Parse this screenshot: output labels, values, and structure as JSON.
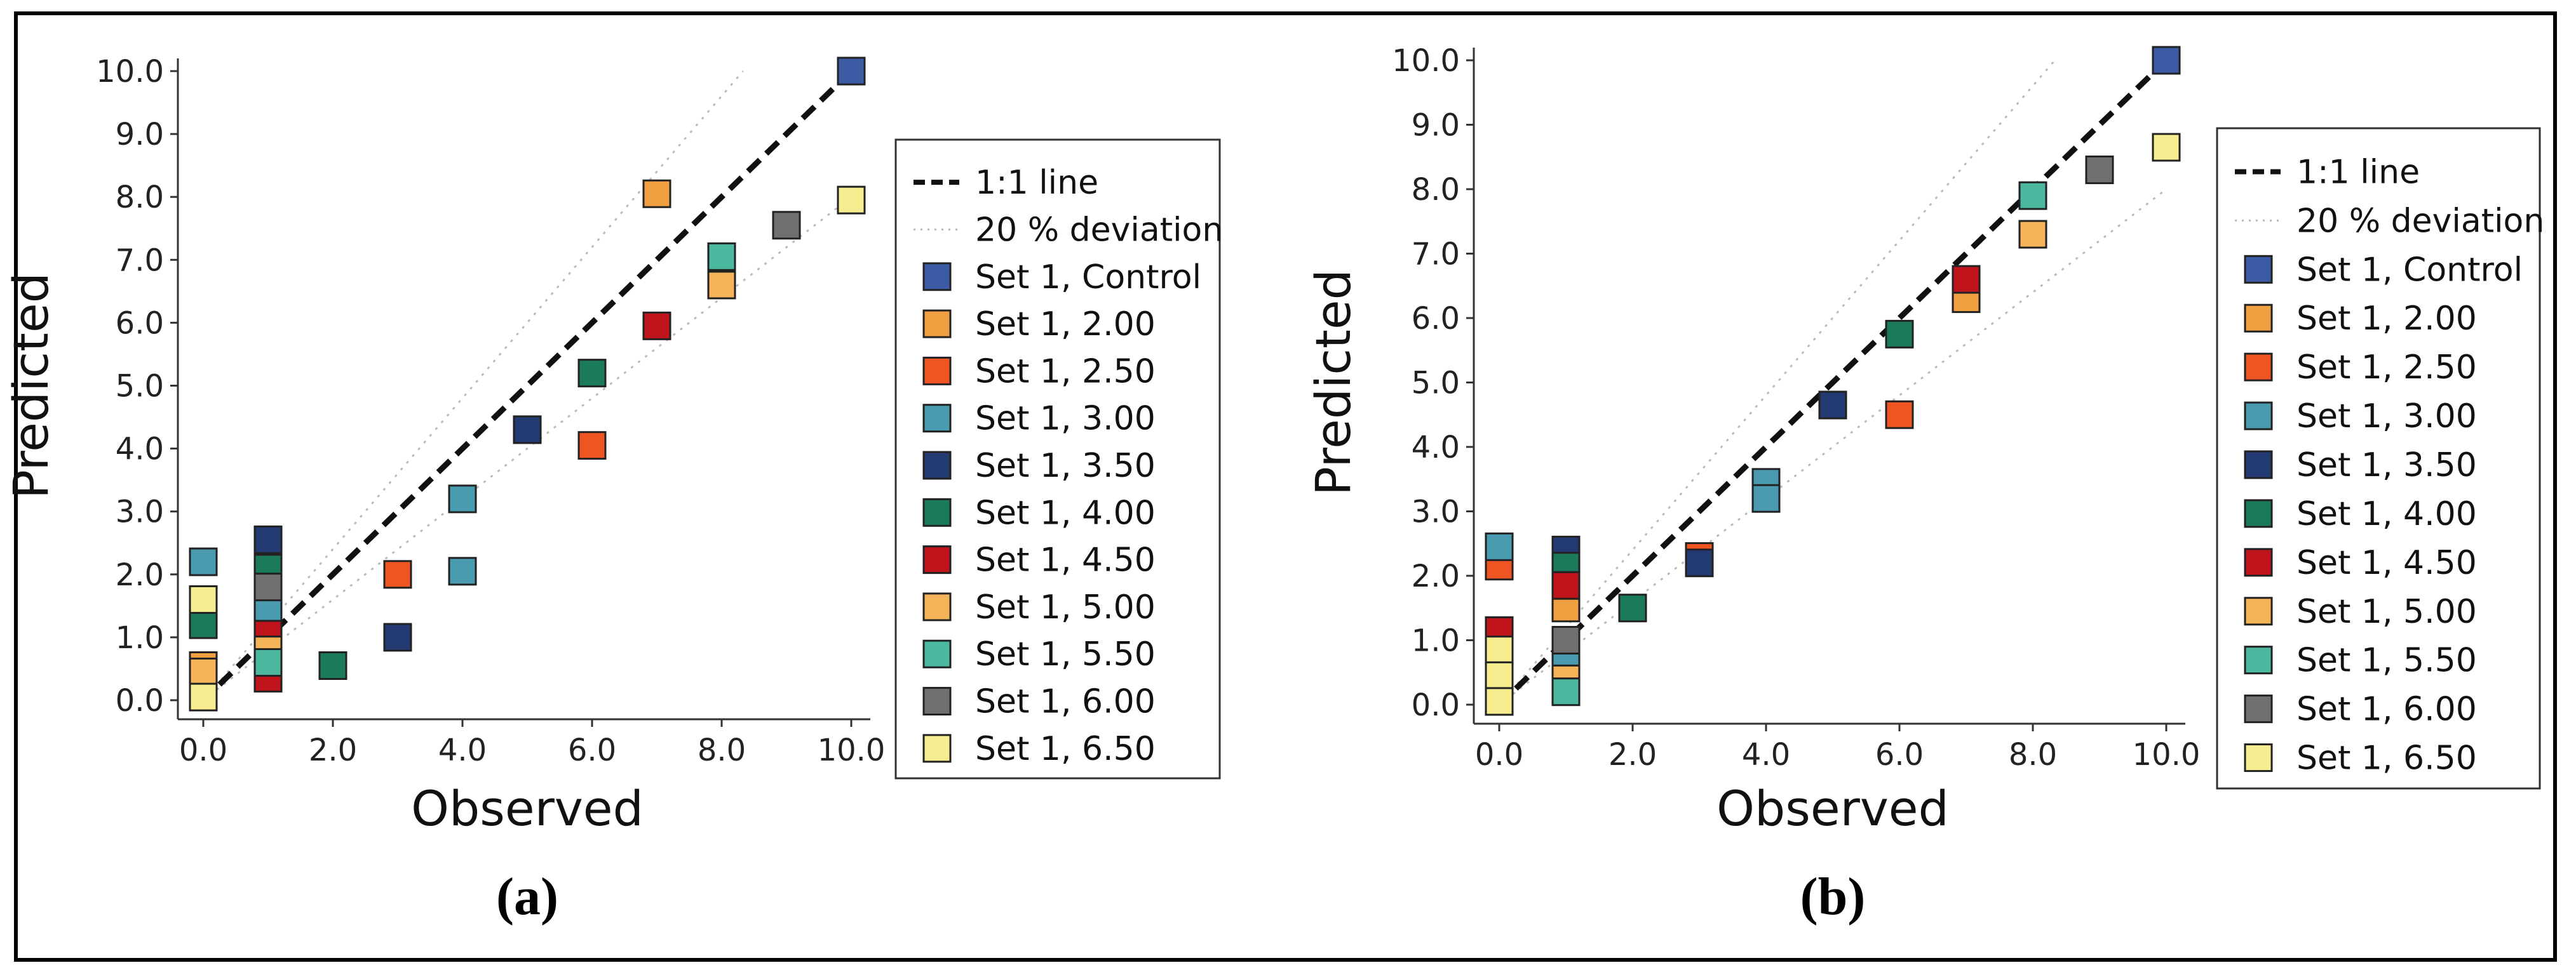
{
  "chart_data": [
    {
      "type": "scatter",
      "panel_label": "(a)",
      "xlabel": "Observed",
      "ylabel": "Predicted",
      "xlim": [
        0,
        10
      ],
      "ylim": [
        0,
        10
      ],
      "xticks": [
        "0.0",
        "2.0",
        "4.0",
        "6.0",
        "8.0",
        "10.0"
      ],
      "yticks": [
        "0.0",
        "1.0",
        "2.0",
        "3.0",
        "4.0",
        "5.0",
        "6.0",
        "7.0",
        "8.0",
        "9.0",
        "10.0"
      ],
      "lines": [
        {
          "name": "1:1 line",
          "style": "dashed"
        },
        {
          "name": "20 % deviation",
          "style": "dotted"
        }
      ],
      "series": [
        {
          "name": "Set 1, Control",
          "color": "#3b5ba5",
          "points": [
            [
              10.0,
              10.0
            ]
          ]
        },
        {
          "name": "Set 1, 2.00",
          "color": "#f0a040",
          "points": [
            [
              7.0,
              8.05
            ],
            [
              0.0,
              0.55
            ],
            [
              1.0,
              2.5
            ]
          ]
        },
        {
          "name": "Set 1, 2.50",
          "color": "#ee5522",
          "points": [
            [
              3.0,
              2.0
            ],
            [
              6.0,
              4.05
            ],
            [
              1.0,
              2.3
            ]
          ]
        },
        {
          "name": "Set 1, 3.00",
          "color": "#4a9ab0",
          "points": [
            [
              4.0,
              3.2
            ],
            [
              4.0,
              2.05
            ],
            [
              0.0,
              2.2
            ],
            [
              1.0,
              1.4
            ]
          ]
        },
        {
          "name": "Set 1, 3.50",
          "color": "#243a72",
          "points": [
            [
              5.0,
              4.3
            ],
            [
              3.0,
              1.0
            ],
            [
              1.0,
              2.55
            ]
          ]
        },
        {
          "name": "Set 1, 4.00",
          "color": "#1b7a5c",
          "points": [
            [
              6.0,
              5.2
            ],
            [
              2.0,
              0.55
            ],
            [
              0.0,
              1.2
            ],
            [
              1.0,
              2.1
            ]
          ]
        },
        {
          "name": "Set 1, 4.50",
          "color": "#c0141c",
          "points": [
            [
              7.0,
              5.95
            ],
            [
              1.0,
              1.05
            ],
            [
              1.0,
              0.35
            ]
          ]
        },
        {
          "name": "Set 1, 5.00",
          "color": "#f5b45a",
          "points": [
            [
              8.0,
              6.6
            ],
            [
              0.0,
              0.45
            ],
            [
              1.0,
              0.8
            ]
          ]
        },
        {
          "name": "Set 1, 5.50",
          "color": "#4cb8a0",
          "points": [
            [
              8.0,
              7.05
            ],
            [
              1.0,
              0.6
            ]
          ]
        },
        {
          "name": "Set 1, 6.00",
          "color": "#707070",
          "points": [
            [
              9.0,
              7.55
            ],
            [
              1.0,
              1.8
            ]
          ]
        },
        {
          "name": "Set 1, 6.50",
          "color": "#f6ec90",
          "points": [
            [
              10.0,
              7.95
            ],
            [
              0.0,
              1.6
            ],
            [
              0.0,
              0.05
            ]
          ]
        }
      ]
    },
    {
      "type": "scatter",
      "panel_label": "(b)",
      "xlabel": "Observed",
      "ylabel": "Predicted",
      "xlim": [
        0,
        10
      ],
      "ylim": [
        0,
        10
      ],
      "xticks": [
        "0.0",
        "2.0",
        "4.0",
        "6.0",
        "8.0",
        "10.0"
      ],
      "yticks": [
        "0.0",
        "1.0",
        "2.0",
        "3.0",
        "4.0",
        "5.0",
        "6.0",
        "7.0",
        "8.0",
        "9.0",
        "10.0"
      ],
      "lines": [
        {
          "name": "1:1 line",
          "style": "dashed"
        },
        {
          "name": "20 % deviation",
          "style": "dotted"
        }
      ],
      "series": [
        {
          "name": "Set 1, Control",
          "color": "#3b5ba5",
          "points": [
            [
              10.0,
              10.0
            ]
          ]
        },
        {
          "name": "Set 1, 2.00",
          "color": "#f0a040",
          "points": [
            [
              7.0,
              6.3
            ],
            [
              1.0,
              1.5
            ]
          ]
        },
        {
          "name": "Set 1, 2.50",
          "color": "#ee5522",
          "points": [
            [
              6.0,
              4.5
            ],
            [
              3.0,
              2.3
            ],
            [
              0.0,
              2.15
            ]
          ]
        },
        {
          "name": "Set 1, 3.00",
          "color": "#4a9ab0",
          "points": [
            [
              4.0,
              3.45
            ],
            [
              4.0,
              3.2
            ],
            [
              0.0,
              2.45
            ],
            [
              1.0,
              0.7
            ]
          ]
        },
        {
          "name": "Set 1, 3.50",
          "color": "#243a72",
          "points": [
            [
              5.0,
              4.65
            ],
            [
              3.0,
              2.2
            ],
            [
              1.0,
              2.4
            ]
          ]
        },
        {
          "name": "Set 1, 4.00",
          "color": "#1b7a5c",
          "points": [
            [
              6.0,
              5.75
            ],
            [
              2.0,
              1.5
            ],
            [
              1.0,
              2.15
            ]
          ]
        },
        {
          "name": "Set 1, 4.50",
          "color": "#c0141c",
          "points": [
            [
              7.0,
              6.6
            ],
            [
              0.0,
              1.15
            ],
            [
              1.0,
              1.85
            ]
          ]
        },
        {
          "name": "Set 1, 5.00",
          "color": "#f5b45a",
          "points": [
            [
              8.0,
              7.3
            ],
            [
              1.0,
              0.4
            ]
          ]
        },
        {
          "name": "Set 1, 5.50",
          "color": "#4cb8a0",
          "points": [
            [
              8.0,
              7.9
            ],
            [
              1.0,
              0.2
            ]
          ]
        },
        {
          "name": "Set 1, 6.00",
          "color": "#707070",
          "points": [
            [
              9.0,
              8.3
            ],
            [
              1.0,
              1.0
            ]
          ]
        },
        {
          "name": "Set 1, 6.50",
          "color": "#f6ec90",
          "points": [
            [
              10.0,
              8.65
            ],
            [
              0.0,
              0.85
            ],
            [
              0.0,
              0.45
            ],
            [
              0.0,
              0.05
            ]
          ]
        }
      ]
    }
  ]
}
